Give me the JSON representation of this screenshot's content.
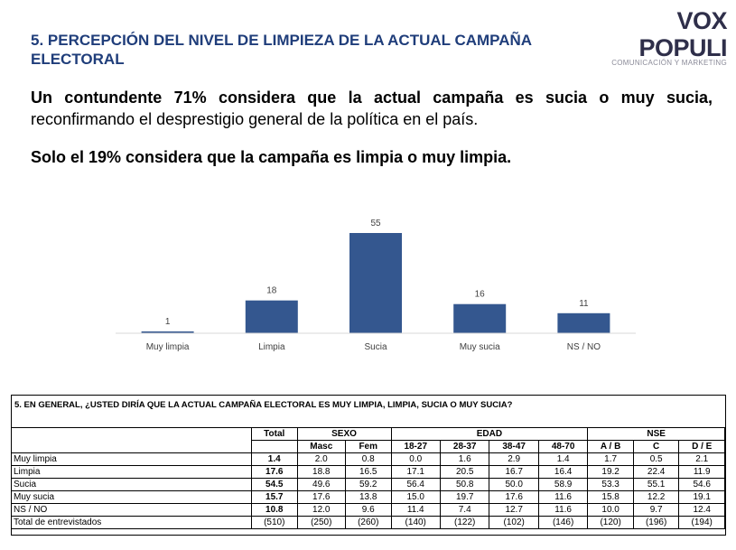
{
  "header": {
    "title": "5. PERCEPCIÓN DEL NIVEL DE LIMPIEZA DE LA ACTUAL CAMPAÑA ELECTORAL",
    "logo_name": "VOX POPULI",
    "logo_tagline": "COMUNICACIÓN Y MARKETING"
  },
  "text": {
    "p1_bold": "Un contundente 71% considera que la actual campaña es sucia o muy sucia,",
    "p1_normal": "reconfirmando el desprestigio general de la política en el país.",
    "p2": "Solo el 19% considera que la campaña es  limpia o muy limpia."
  },
  "colors": {
    "title": "#1f3d7a",
    "bar": "#34578f",
    "logo_accent": "#e8343c"
  },
  "chart_data": {
    "type": "bar",
    "title": "",
    "xlabel": "",
    "ylabel": "",
    "categories": [
      "Muy limpia",
      "Limpia",
      "Sucia",
      "Muy sucia",
      "NS / NO"
    ],
    "values": [
      1,
      18,
      55,
      16,
      11
    ],
    "ylim": [
      0,
      55
    ],
    "grid": false,
    "legend": "none"
  },
  "table": {
    "question": "5. EN GENERAL, ¿USTED DIRÍA QUE LA ACTUAL CAMPAÑA ELECTORAL ES MUY LIMPIA, LIMPIA, SUCIA O MUY SUCIA?",
    "total_header": "Total",
    "groups": [
      "SEXO",
      "EDAD",
      "NSE"
    ],
    "subheaders": [
      "Masc",
      "Fem",
      "18-27",
      "28-37",
      "38-47",
      "48-70",
      "A / B",
      "C",
      "D / E"
    ],
    "rows": [
      {
        "label": "Muy limpia",
        "values": [
          "1.4",
          "2.0",
          "0.8",
          "0.0",
          "1.6",
          "2.9",
          "1.4",
          "1.7",
          "0.5",
          "2.1"
        ]
      },
      {
        "label": "Limpia",
        "values": [
          "17.6",
          "18.8",
          "16.5",
          "17.1",
          "20.5",
          "16.7",
          "16.4",
          "19.2",
          "22.4",
          "11.9"
        ]
      },
      {
        "label": "Sucia",
        "values": [
          "54.5",
          "49.6",
          "59.2",
          "56.4",
          "50.8",
          "50.0",
          "58.9",
          "53.3",
          "55.1",
          "54.6"
        ]
      },
      {
        "label": "Muy sucia",
        "values": [
          "15.7",
          "17.6",
          "13.8",
          "15.0",
          "19.7",
          "17.6",
          "11.6",
          "15.8",
          "12.2",
          "19.1"
        ]
      },
      {
        "label": "NS / NO",
        "values": [
          "10.8",
          "12.0",
          "9.6",
          "11.4",
          "7.4",
          "12.7",
          "11.6",
          "10.0",
          "9.7",
          "12.4"
        ]
      },
      {
        "label": "Total de entrevistados",
        "values": [
          "(510)",
          "(250)",
          "(260)",
          "(140)",
          "(122)",
          "(102)",
          "(146)",
          "(120)",
          "(196)",
          "(194)"
        ]
      }
    ]
  }
}
